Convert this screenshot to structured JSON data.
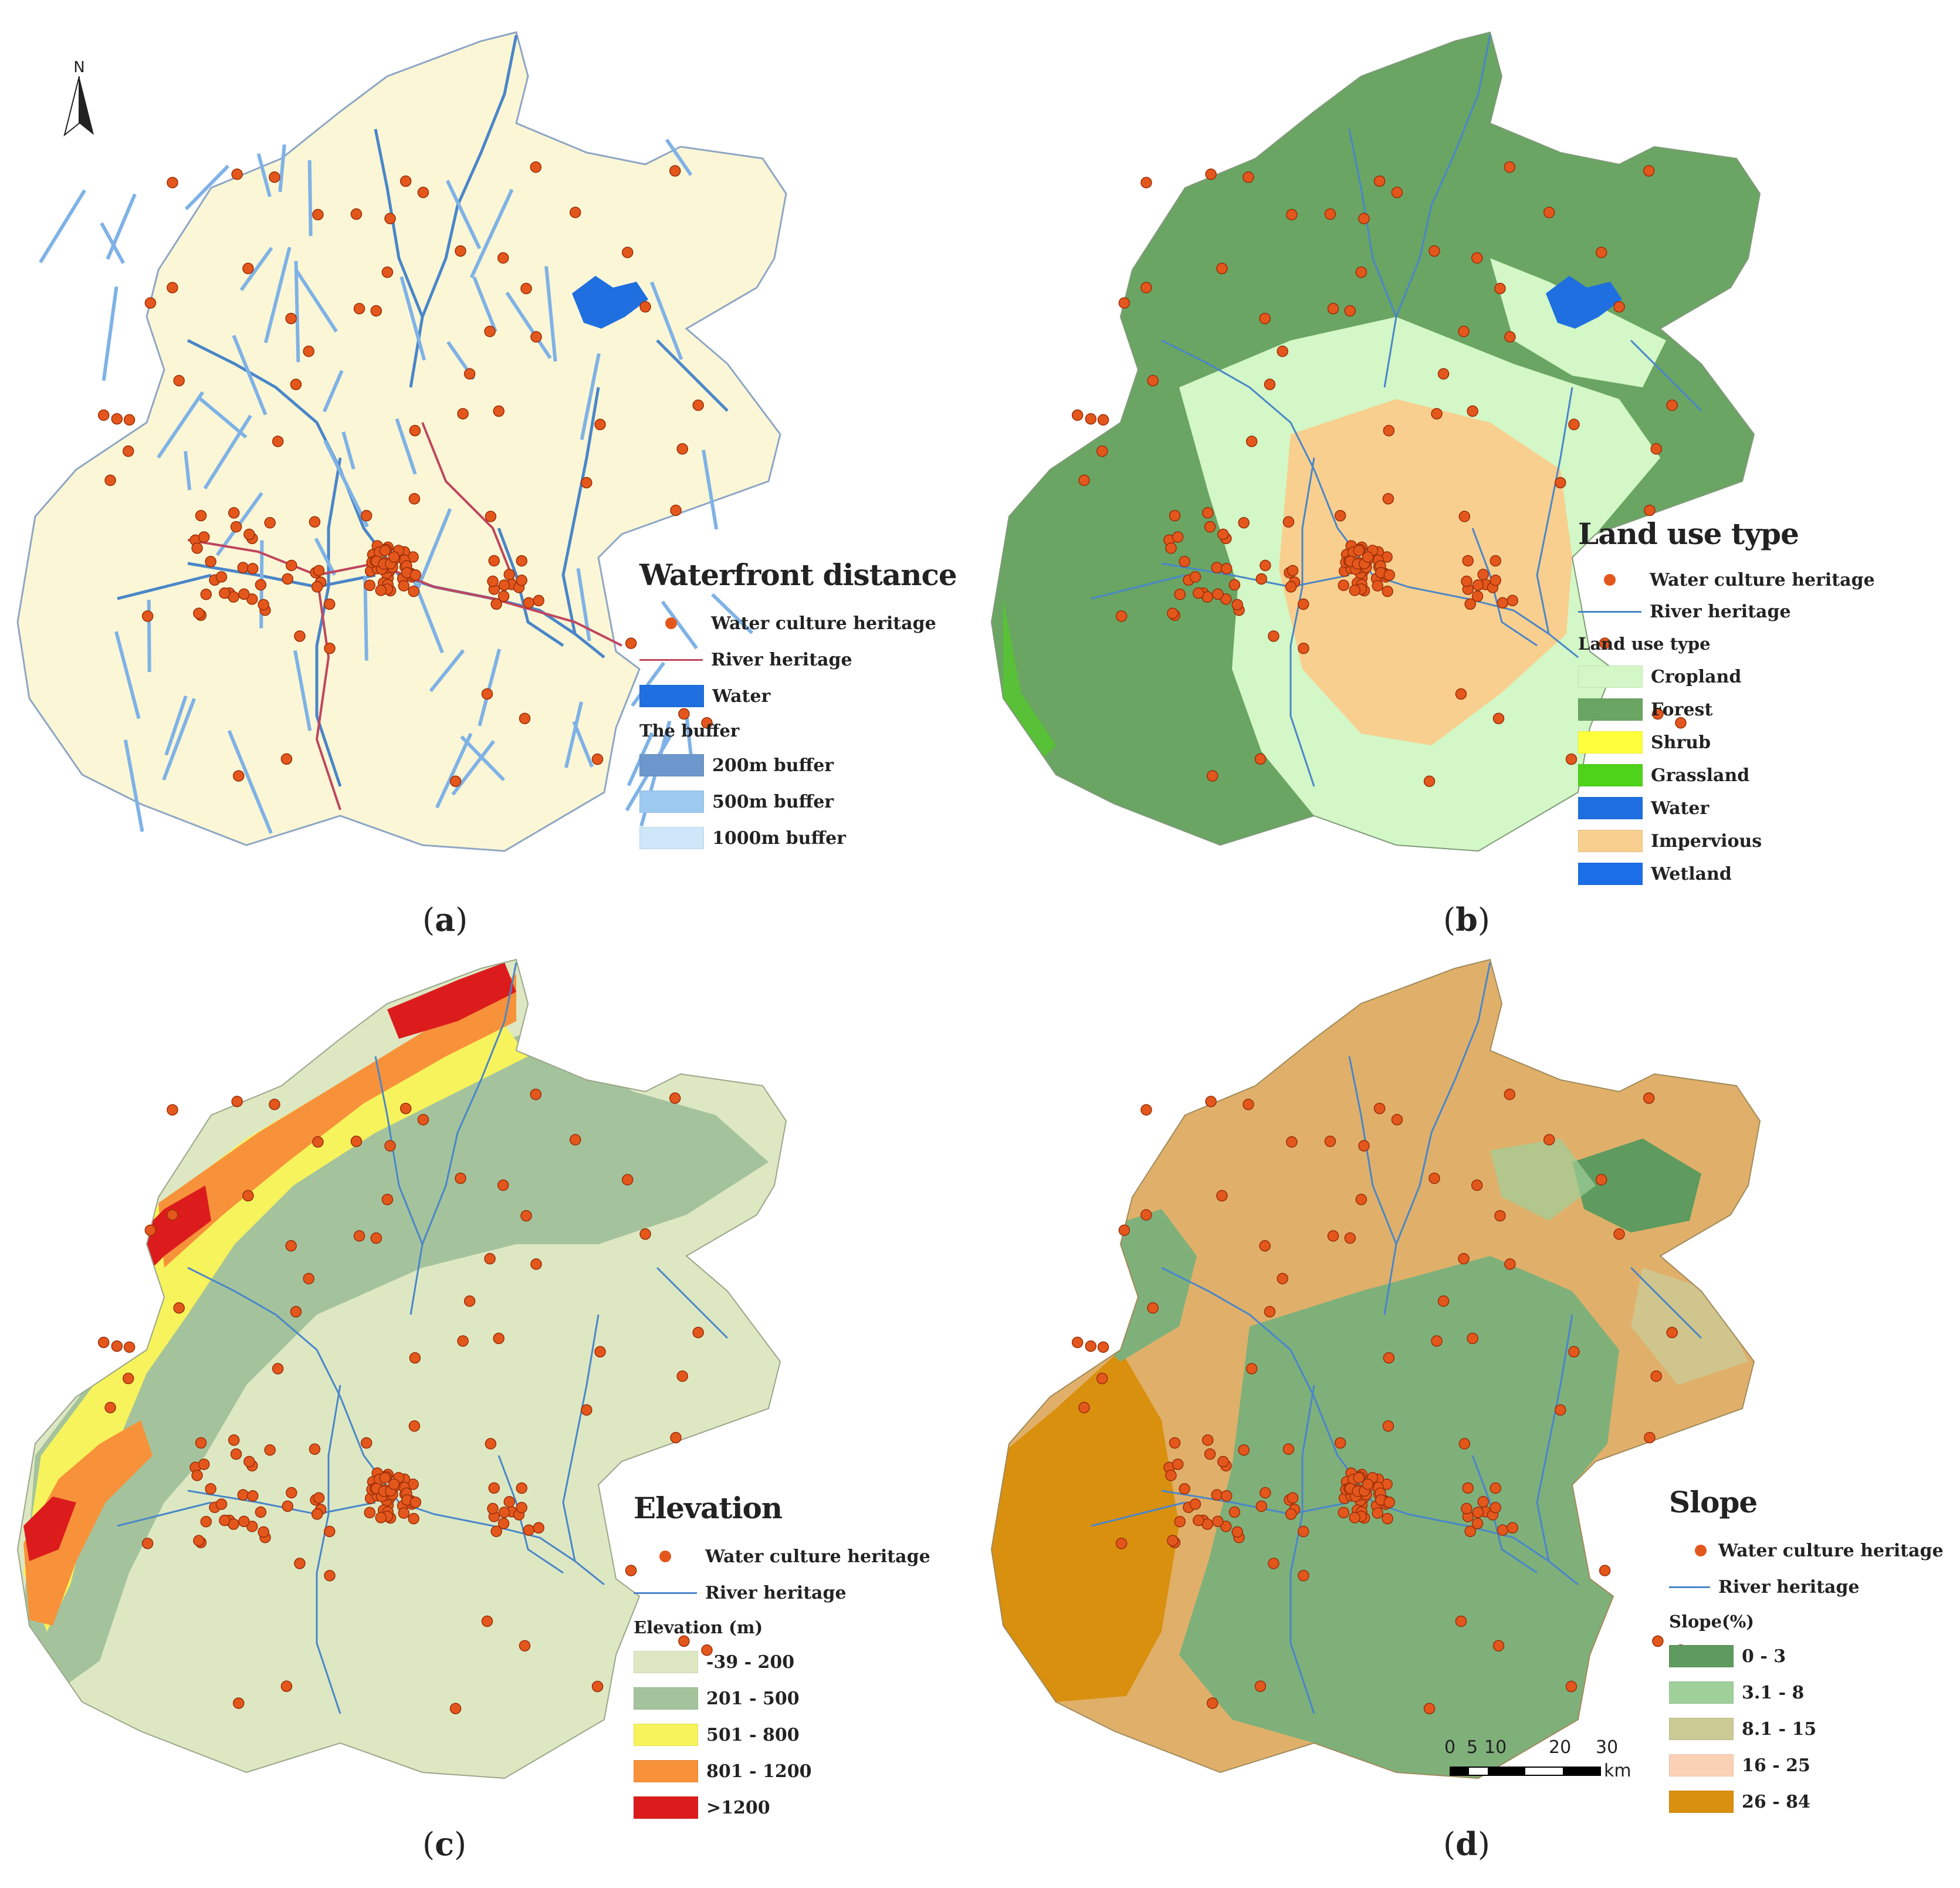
{
  "colors": {
    "heritage_dot": "#e4571c",
    "heritage_dot_stroke": "#9a2e08",
    "river_heritage_a": "#c0465e",
    "river_heritage": "#4a86c9",
    "water": "#1f6fe0",
    "buffer_200": "#6b97cc",
    "buffer_500": "#9cc9f0",
    "buffer_1000": "#cde7f8",
    "base_a": "#fbf7d6",
    "cropland": "#d3f7c6",
    "forest": "#6aa563",
    "shrub": "#ffff3c",
    "grassland": "#4ed31a",
    "lu_water": "#1f6fe0",
    "impervious": "#f8cf8e",
    "wetland": "#1b6ee8",
    "elev_1": "#dde8c3",
    "elev_2": "#a4c39c",
    "elev_3": "#f7f35c",
    "elev_4": "#f7923a",
    "elev_5": "#dc1c1c",
    "slope_1": "#5f9a5e",
    "slope_2": "#9fd09a",
    "slope_3": "#ccca95",
    "slope_4": "#fbd1b6",
    "slope_5": "#d9900f"
  },
  "north_arrow": "N",
  "panels": {
    "a": {
      "caption_letter": "a",
      "legend": {
        "title": "Waterfront distance",
        "items": [
          {
            "label": "Water culture heritage",
            "symbol": "dot"
          },
          {
            "label": "River heritage",
            "symbol": "line"
          },
          {
            "label": "Water",
            "symbol": "swatch",
            "color": "#1f6fe0"
          }
        ],
        "subtitle": "The buffer",
        "classes": [
          {
            "label": "200m buffer",
            "color": "#6b97cc"
          },
          {
            "label": "500m buffer",
            "color": "#9cc9f0"
          },
          {
            "label": "1000m buffer",
            "color": "#cde7f8"
          }
        ]
      }
    },
    "b": {
      "caption_letter": "b",
      "legend": {
        "title": "Land use type",
        "items": [
          {
            "label": "Water culture heritage",
            "symbol": "dot"
          },
          {
            "label": "River heritage",
            "symbol": "line"
          }
        ],
        "subtitle": "Land use type",
        "classes": [
          {
            "label": "Cropland",
            "color": "#d3f7c6"
          },
          {
            "label": "Forest",
            "color": "#6aa563"
          },
          {
            "label": "Shrub",
            "color": "#ffff3c"
          },
          {
            "label": "Grassland",
            "color": "#4ed31a"
          },
          {
            "label": "Water",
            "color": "#1f6fe0"
          },
          {
            "label": "Impervious",
            "color": "#f8cf8e"
          },
          {
            "label": "Wetland",
            "color": "#1b6ee8"
          }
        ]
      }
    },
    "c": {
      "caption_letter": "c",
      "legend": {
        "title": "Elevation",
        "items": [
          {
            "label": "Water culture heritage",
            "symbol": "dot"
          },
          {
            "label": "River heritage",
            "symbol": "line"
          }
        ],
        "subtitle": "Elevation (m)",
        "classes": [
          {
            "label": "-39 - 200",
            "color": "#dde8c3"
          },
          {
            "label": "201 - 500",
            "color": "#a4c39c"
          },
          {
            "label": "501 - 800",
            "color": "#f7f35c"
          },
          {
            "label": "801 - 1200",
            "color": "#f7923a"
          },
          {
            "label": ">1200",
            "color": "#dc1c1c"
          }
        ]
      }
    },
    "d": {
      "caption_letter": "d",
      "legend": {
        "title": "Slope",
        "items": [
          {
            "label": "Water culture heritage",
            "symbol": "dot"
          },
          {
            "label": "River heritage",
            "symbol": "line"
          }
        ],
        "subtitle": "Slope(%)",
        "classes": [
          {
            "label": "0 - 3",
            "color": "#5f9a5e"
          },
          {
            "label": "3.1 - 8",
            "color": "#9fd09a"
          },
          {
            "label": "8.1 - 15",
            "color": "#ccca95"
          },
          {
            "label": "16 - 25",
            "color": "#fbd1b6"
          },
          {
            "label": "26 - 84",
            "color": "#d9900f"
          }
        ]
      },
      "scale_bar": {
        "ticks": [
          "0",
          "5",
          "10",
          "20",
          "30"
        ],
        "unit": "km"
      }
    }
  }
}
